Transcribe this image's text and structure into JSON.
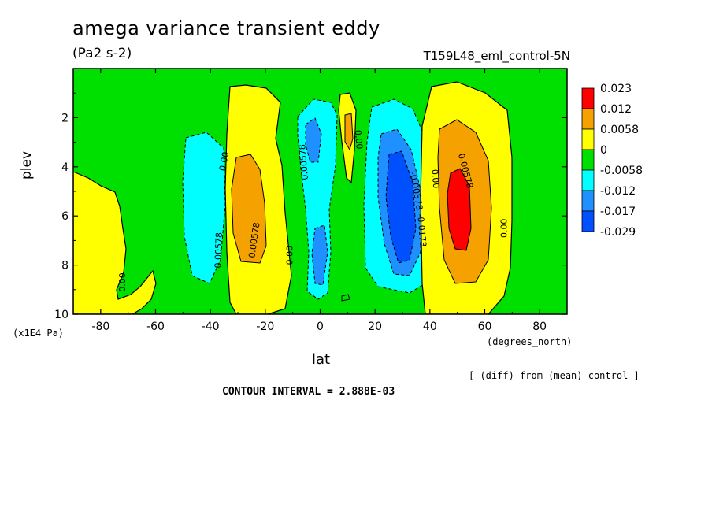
{
  "header": {
    "title": "amega variance transient eddy",
    "subtitle": "(Pa2 s-2)",
    "run_label": "T159L48_eml_control-5N"
  },
  "footer": {
    "y_unit": "(x1E4 Pa)",
    "x_unit": "(degrees_north)",
    "note": "[ (diff) from (mean) control ]",
    "contour_interval": "CONTOUR INTERVAL = 2.888E-03"
  },
  "chart_data": {
    "type": "heatmap",
    "title": "amega variance transient eddy",
    "units": "(Pa2 s-2)",
    "xlabel": "lat",
    "ylabel": "plev",
    "xlim": [
      -90,
      90
    ],
    "ylim": [
      10,
      0
    ],
    "x_ticks": [
      -80,
      -60,
      -40,
      -20,
      0,
      20,
      40,
      60,
      80
    ],
    "x_tick_labels": [
      "-80",
      "-60",
      "-40",
      "-20",
      "0",
      "20",
      "40",
      "60",
      "80"
    ],
    "y_ticks": [
      2,
      4,
      6,
      8,
      10
    ],
    "y_tick_labels": [
      "2",
      "4",
      "6",
      "8",
      "10"
    ],
    "colorbar": {
      "labels": [
        "0.023",
        "0.012",
        "0.0058",
        "0",
        "-0.0058",
        "-0.012",
        "-0.017",
        "-0.029"
      ],
      "colors": [
        "#ff0000",
        "#f5a100",
        "#ffff00",
        "#00e000",
        "#00ffff",
        "#1e90ff",
        "#0050ff"
      ]
    },
    "features": [
      {
        "lat": -57,
        "plev": 6.2,
        "value": -0.0058
      },
      {
        "lat": -27,
        "plev": 6.0,
        "value": 0.012
      },
      {
        "lat": -2,
        "plev": 3.0,
        "value": -0.012
      },
      {
        "lat": 0,
        "plev": 7.6,
        "value": -0.012
      },
      {
        "lat": 10,
        "plev": 2.8,
        "value": 0.0058
      },
      {
        "lat": 30,
        "plev": 6.0,
        "value": -0.029
      },
      {
        "lat": 50,
        "plev": 6.0,
        "value": 0.023
      },
      {
        "lat": -85,
        "plev": 7.0,
        "value": 0.0058
      }
    ],
    "contour_labels": [
      {
        "text": "0.00",
        "lat": -34,
        "plev": 3.8,
        "angle": -80
      },
      {
        "text": "0.00578",
        "lat": -36,
        "plev": 7.4,
        "angle": -88
      },
      {
        "text": "0.00578",
        "lat": -23,
        "plev": 7.0,
        "angle": -82
      },
      {
        "text": "0.00",
        "lat": -71,
        "plev": 8.7,
        "angle": -90
      },
      {
        "text": "0.00",
        "lat": -10,
        "plev": 7.6,
        "angle": -90
      },
      {
        "text": "0.00578",
        "lat": -5,
        "plev": 3.8,
        "angle": -95
      },
      {
        "text": "0.00",
        "lat": 13,
        "plev": 2.9,
        "angle": 85
      },
      {
        "text": "-0.00578",
        "lat": 34,
        "plev": 5.0,
        "angle": 80
      },
      {
        "text": "-0.0173",
        "lat": 36,
        "plev": 6.6,
        "angle": 85
      },
      {
        "text": "0.00",
        "lat": 41,
        "plev": 4.5,
        "angle": 85
      },
      {
        "text": "0.00578",
        "lat": 52,
        "plev": 4.2,
        "angle": 75
      },
      {
        "text": "0.00",
        "lat": 68,
        "plev": 6.5,
        "angle": -90
      }
    ]
  }
}
